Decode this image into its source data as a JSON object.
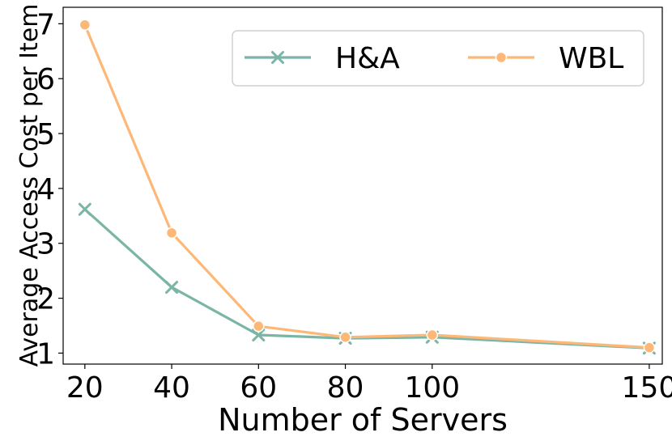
{
  "chart_data": {
    "type": "line",
    "xlabel": "Number of Servers",
    "ylabel": "Average Access Cost per Item",
    "x": [
      20,
      40,
      60,
      80,
      100,
      150
    ],
    "x_ticks": [
      "20",
      "40",
      "60",
      "80",
      "100",
      "150"
    ],
    "y_ticks": [
      "1",
      "2",
      "3",
      "4",
      "5",
      "6",
      "7"
    ],
    "xlim": [
      15,
      153
    ],
    "ylim": [
      0.8,
      7.3
    ],
    "grid": false,
    "legend_position": "top-right",
    "series": [
      {
        "name": "H&A",
        "marker": "x",
        "color": "#7ab5a6",
        "values": [
          3.62,
          2.2,
          1.33,
          1.27,
          1.29,
          1.09
        ]
      },
      {
        "name": "WBL",
        "marker": "circle",
        "color": "#fdb877",
        "values": [
          6.98,
          3.19,
          1.49,
          1.29,
          1.33,
          1.1
        ]
      }
    ]
  }
}
